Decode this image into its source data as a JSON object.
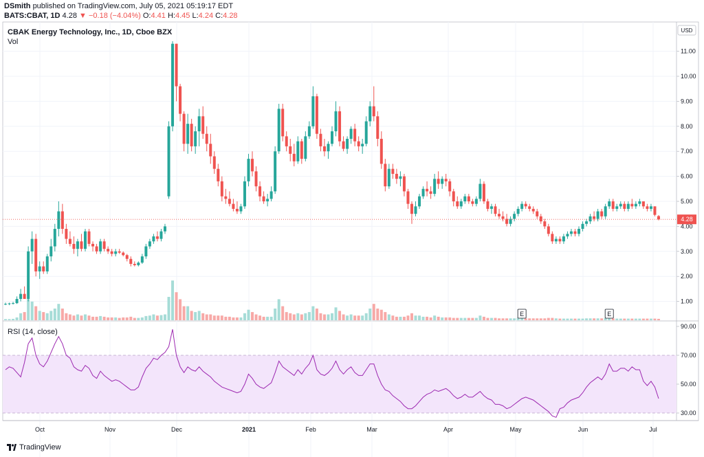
{
  "header": {
    "author": "DSmith",
    "published_text": "published on TradingView.com, July 05, 2021 05:19:17 EDT",
    "symbol": "BATS:CBAT, 1D",
    "last": "4.28",
    "change": "▼ −0.18 (−4.04%)",
    "o_label": "O:",
    "o_value": "4.41",
    "h_label": "H:",
    "h_value": "4.45",
    "l_label": "L:",
    "l_value": "4.24",
    "c_label": "C:",
    "c_value": "4.28"
  },
  "colors": {
    "up": "#26a69a",
    "down": "#ef5350",
    "rsi": "#9c27b0",
    "rsi_band": "#f3e5fb",
    "grid": "#f0f3fa"
  },
  "footer": {
    "brand": "TradingView",
    "logo_icon": "tradingview-logo-icon"
  },
  "chart_data": [
    {
      "type": "candlestick",
      "title": "CBAK Energy Technology, Inc., 1D, Cboe BZX",
      "volume_label": "Vol",
      "currency": "USD",
      "last_price_label": "4.28",
      "ylim": [
        0,
        11.8
      ],
      "y_ticks": [
        "1.00",
        "2.00",
        "3.00",
        "4.00",
        "5.00",
        "6.00",
        "7.00",
        "8.00",
        "9.00",
        "10.00",
        "11.00"
      ],
      "x_ticks": [
        "Oct",
        "Nov",
        "Dec",
        "2021",
        "Feb",
        "Mar",
        "Apr",
        "May",
        "Jun",
        "Jul"
      ],
      "earnings_markers": [
        "E",
        "E"
      ],
      "ohlc": [
        [
          0.9,
          0.95,
          0.85,
          0.9
        ],
        [
          0.9,
          0.95,
          0.85,
          0.92
        ],
        [
          0.92,
          0.98,
          0.88,
          0.93
        ],
        [
          0.93,
          1.2,
          0.9,
          1.1
        ],
        [
          1.1,
          1.5,
          1.0,
          1.3
        ],
        [
          1.3,
          1.6,
          1.2,
          1.1
        ],
        [
          1.1,
          3.2,
          1.0,
          3.0
        ],
        [
          3.0,
          3.8,
          2.5,
          3.5
        ],
        [
          3.5,
          3.7,
          2.0,
          2.2
        ],
        [
          2.2,
          2.6,
          1.9,
          2.4
        ],
        [
          2.4,
          2.6,
          2.1,
          2.2
        ],
        [
          2.2,
          2.9,
          2.1,
          2.8
        ],
        [
          2.8,
          3.5,
          2.6,
          3.2
        ],
        [
          3.2,
          4.1,
          3.0,
          3.9
        ],
        [
          3.9,
          5.0,
          3.6,
          4.6
        ],
        [
          4.6,
          4.9,
          3.7,
          3.9
        ],
        [
          3.9,
          4.1,
          3.3,
          3.5
        ],
        [
          3.5,
          3.8,
          3.2,
          3.3
        ],
        [
          3.3,
          3.6,
          2.9,
          3.1
        ],
        [
          3.1,
          3.5,
          2.8,
          3.4
        ],
        [
          3.4,
          3.7,
          3.0,
          3.1
        ],
        [
          3.1,
          3.9,
          3.0,
          3.8
        ],
        [
          3.8,
          3.9,
          3.2,
          3.3
        ],
        [
          3.3,
          3.4,
          3.0,
          3.2
        ],
        [
          3.2,
          3.3,
          2.9,
          3.0
        ],
        [
          3.0,
          3.5,
          2.9,
          3.4
        ],
        [
          3.4,
          3.5,
          3.0,
          3.1
        ],
        [
          3.1,
          3.2,
          2.9,
          3.0
        ],
        [
          3.0,
          3.1,
          2.8,
          2.9
        ],
        [
          2.9,
          3.1,
          2.8,
          3.0
        ],
        [
          3.0,
          3.1,
          2.9,
          2.95
        ],
        [
          2.95,
          3.0,
          2.8,
          2.85
        ],
        [
          2.85,
          2.9,
          2.6,
          2.7
        ],
        [
          2.7,
          2.8,
          2.4,
          2.5
        ],
        [
          2.5,
          2.6,
          2.4,
          2.45
        ],
        [
          2.45,
          2.6,
          2.4,
          2.55
        ],
        [
          2.55,
          2.9,
          2.5,
          2.8
        ],
        [
          2.8,
          3.3,
          2.7,
          3.2
        ],
        [
          3.2,
          3.5,
          3.1,
          3.4
        ],
        [
          3.4,
          3.7,
          3.3,
          3.6
        ],
        [
          3.6,
          3.8,
          3.4,
          3.5
        ],
        [
          3.5,
          3.9,
          3.4,
          3.8
        ],
        [
          3.8,
          4.1,
          3.7,
          4.0
        ],
        [
          5.2,
          8.2,
          5.1,
          8.0
        ],
        [
          8.0,
          11.4,
          7.8,
          11.3
        ],
        [
          11.3,
          11.3,
          9.0,
          9.6
        ],
        [
          9.6,
          9.7,
          8.2,
          8.5
        ],
        [
          8.5,
          8.6,
          7.0,
          7.3
        ],
        [
          7.3,
          8.5,
          6.9,
          8.1
        ],
        [
          8.1,
          8.3,
          7.0,
          7.2
        ],
        [
          7.2,
          8.0,
          6.9,
          7.8
        ],
        [
          7.8,
          8.7,
          7.2,
          8.4
        ],
        [
          8.4,
          8.8,
          7.5,
          7.7
        ],
        [
          7.7,
          8.0,
          7.0,
          7.3
        ],
        [
          7.3,
          7.7,
          6.5,
          6.8
        ],
        [
          6.8,
          7.0,
          6.1,
          6.3
        ],
        [
          6.3,
          6.5,
          5.6,
          5.8
        ],
        [
          5.8,
          6.0,
          5.0,
          5.2
        ],
        [
          5.2,
          5.5,
          4.9,
          5.1
        ],
        [
          5.1,
          5.4,
          4.8,
          4.9
        ],
        [
          4.9,
          5.1,
          4.6,
          4.7
        ],
        [
          4.7,
          5.0,
          4.5,
          4.6
        ],
        [
          4.6,
          4.9,
          4.5,
          4.8
        ],
        [
          4.8,
          6.0,
          4.7,
          5.8
        ],
        [
          5.8,
          6.9,
          5.6,
          6.7
        ],
        [
          6.7,
          7.0,
          6.0,
          6.2
        ],
        [
          6.2,
          6.4,
          5.4,
          5.6
        ],
        [
          5.6,
          5.8,
          5.0,
          5.2
        ],
        [
          5.2,
          5.4,
          4.9,
          5.0
        ],
        [
          5.0,
          5.3,
          4.8,
          5.1
        ],
        [
          5.1,
          5.6,
          5.0,
          5.4
        ],
        [
          5.4,
          7.2,
          5.3,
          7.0
        ],
        [
          7.0,
          8.9,
          6.9,
          8.7
        ],
        [
          8.7,
          8.9,
          7.4,
          7.6
        ],
        [
          7.6,
          7.8,
          7.0,
          7.2
        ],
        [
          7.2,
          7.5,
          6.6,
          6.9
        ],
        [
          6.9,
          7.3,
          6.4,
          6.6
        ],
        [
          6.6,
          7.6,
          6.5,
          7.4
        ],
        [
          7.4,
          7.5,
          6.5,
          6.7
        ],
        [
          6.7,
          7.8,
          6.6,
          7.6
        ],
        [
          7.6,
          8.2,
          7.5,
          8.0
        ],
        [
          8.0,
          9.6,
          7.9,
          9.2
        ],
        [
          9.2,
          9.3,
          7.5,
          7.7
        ],
        [
          7.7,
          7.9,
          7.0,
          7.2
        ],
        [
          7.2,
          7.5,
          6.8,
          7.0
        ],
        [
          7.0,
          7.4,
          6.7,
          7.3
        ],
        [
          7.3,
          8.0,
          7.2,
          7.8
        ],
        [
          7.8,
          9.0,
          7.6,
          8.6
        ],
        [
          8.6,
          8.8,
          7.2,
          7.4
        ],
        [
          7.4,
          7.6,
          7.0,
          7.1
        ],
        [
          7.1,
          7.6,
          6.9,
          7.5
        ],
        [
          7.5,
          8.0,
          7.3,
          7.9
        ],
        [
          7.9,
          8.1,
          7.2,
          7.4
        ],
        [
          7.4,
          7.6,
          7.0,
          7.2
        ],
        [
          7.2,
          7.5,
          6.9,
          7.3
        ],
        [
          7.3,
          8.4,
          7.2,
          8.2
        ],
        [
          8.2,
          9.0,
          8.0,
          8.8
        ],
        [
          8.8,
          9.6,
          8.2,
          8.4
        ],
        [
          8.4,
          8.6,
          7.2,
          7.5
        ],
        [
          7.5,
          7.8,
          6.3,
          6.5
        ],
        [
          6.5,
          6.7,
          5.4,
          5.6
        ],
        [
          5.6,
          6.5,
          5.5,
          6.3
        ],
        [
          6.3,
          6.5,
          5.9,
          6.1
        ],
        [
          6.1,
          6.3,
          5.7,
          5.9
        ],
        [
          5.9,
          6.2,
          5.6,
          6.0
        ],
        [
          6.0,
          6.1,
          5.2,
          5.4
        ],
        [
          5.4,
          5.5,
          4.7,
          4.9
        ],
        [
          4.9,
          5.0,
          4.1,
          4.5
        ],
        [
          4.5,
          5.0,
          4.4,
          4.8
        ],
        [
          4.8,
          5.3,
          4.7,
          5.2
        ],
        [
          5.2,
          5.6,
          5.1,
          5.5
        ],
        [
          5.5,
          5.8,
          5.2,
          5.4
        ],
        [
          5.4,
          5.6,
          5.1,
          5.3
        ],
        [
          5.3,
          6.1,
          5.2,
          5.9
        ],
        [
          5.9,
          6.2,
          5.5,
          5.7
        ],
        [
          5.7,
          6.0,
          5.5,
          5.9
        ],
        [
          5.9,
          6.1,
          5.6,
          5.8
        ],
        [
          5.8,
          5.9,
          5.2,
          5.4
        ],
        [
          5.4,
          5.5,
          4.8,
          5.0
        ],
        [
          5.0,
          5.2,
          4.7,
          4.8
        ],
        [
          4.8,
          5.1,
          4.7,
          5.0
        ],
        [
          5.0,
          5.3,
          4.9,
          5.2
        ],
        [
          5.2,
          5.3,
          4.9,
          5.0
        ],
        [
          5.0,
          5.1,
          4.8,
          4.9
        ],
        [
          4.9,
          5.2,
          4.8,
          5.1
        ],
        [
          5.1,
          5.9,
          5.0,
          5.7
        ],
        [
          5.7,
          5.8,
          4.9,
          5.0
        ],
        [
          5.0,
          5.1,
          4.6,
          4.7
        ],
        [
          4.7,
          4.9,
          4.5,
          4.8
        ],
        [
          4.8,
          4.9,
          4.4,
          4.5
        ],
        [
          4.5,
          4.7,
          4.3,
          4.4
        ],
        [
          4.4,
          4.6,
          4.2,
          4.3
        ],
        [
          4.3,
          4.5,
          4.0,
          4.1
        ],
        [
          4.1,
          4.4,
          4.0,
          4.3
        ],
        [
          4.3,
          4.6,
          4.2,
          4.5
        ],
        [
          4.5,
          4.8,
          4.4,
          4.7
        ],
        [
          4.7,
          5.0,
          4.6,
          4.9
        ],
        [
          4.9,
          5.0,
          4.7,
          4.8
        ],
        [
          4.8,
          4.9,
          4.6,
          4.7
        ],
        [
          4.7,
          4.8,
          4.5,
          4.6
        ],
        [
          4.6,
          4.7,
          4.3,
          4.4
        ],
        [
          4.4,
          4.5,
          4.1,
          4.2
        ],
        [
          4.2,
          4.3,
          3.9,
          4.0
        ],
        [
          4.0,
          4.1,
          3.6,
          3.7
        ],
        [
          3.7,
          3.8,
          3.3,
          3.4
        ],
        [
          3.4,
          3.6,
          3.3,
          3.5
        ],
        [
          3.5,
          3.6,
          3.3,
          3.4
        ],
        [
          3.4,
          3.7,
          3.3,
          3.6
        ],
        [
          3.6,
          3.8,
          3.5,
          3.7
        ],
        [
          3.7,
          3.9,
          3.6,
          3.8
        ],
        [
          3.8,
          3.9,
          3.6,
          3.7
        ],
        [
          3.7,
          4.0,
          3.6,
          3.9
        ],
        [
          3.9,
          4.2,
          3.8,
          4.1
        ],
        [
          4.1,
          4.3,
          4.0,
          4.2
        ],
        [
          4.2,
          4.5,
          4.1,
          4.4
        ],
        [
          4.4,
          4.6,
          4.2,
          4.3
        ],
        [
          4.3,
          4.7,
          4.2,
          4.6
        ],
        [
          4.6,
          4.7,
          4.3,
          4.4
        ],
        [
          4.4,
          4.9,
          4.3,
          4.8
        ],
        [
          4.8,
          5.1,
          4.7,
          5.0
        ],
        [
          5.0,
          5.1,
          4.6,
          4.7
        ],
        [
          4.7,
          4.9,
          4.6,
          4.8
        ],
        [
          4.8,
          5.0,
          4.7,
          4.9
        ],
        [
          4.9,
          5.0,
          4.6,
          4.7
        ],
        [
          4.7,
          5.0,
          4.6,
          4.9
        ],
        [
          4.9,
          5.1,
          4.7,
          4.8
        ],
        [
          4.8,
          5.0,
          4.7,
          4.9
        ],
        [
          4.9,
          5.1,
          4.8,
          5.0
        ],
        [
          5.0,
          5.0,
          4.7,
          4.8
        ],
        [
          4.8,
          4.9,
          4.6,
          4.7
        ],
        [
          4.7,
          4.9,
          4.6,
          4.8
        ],
        [
          4.8,
          4.8,
          4.4,
          4.46
        ],
        [
          4.41,
          4.45,
          4.24,
          4.28
        ]
      ],
      "volume": [
        0.05,
        0.05,
        0.06,
        0.12,
        0.3,
        0.35,
        0.9,
        0.8,
        0.6,
        0.4,
        0.35,
        0.3,
        0.4,
        0.5,
        0.7,
        0.5,
        0.3,
        0.25,
        0.2,
        0.25,
        0.2,
        0.25,
        0.2,
        0.15,
        0.15,
        0.18,
        0.15,
        0.12,
        0.12,
        0.12,
        0.1,
        0.12,
        0.12,
        0.15,
        0.1,
        0.1,
        0.12,
        0.18,
        0.2,
        0.25,
        0.2,
        0.22,
        0.25,
        1.0,
        1.7,
        1.2,
        0.9,
        0.6,
        0.6,
        0.4,
        0.35,
        0.4,
        0.3,
        0.25,
        0.25,
        0.2,
        0.2,
        0.2,
        0.15,
        0.15,
        0.12,
        0.12,
        0.12,
        0.3,
        0.45,
        0.35,
        0.25,
        0.2,
        0.15,
        0.15,
        0.15,
        0.5,
        0.9,
        0.6,
        0.35,
        0.3,
        0.25,
        0.3,
        0.25,
        0.3,
        0.35,
        0.6,
        0.5,
        0.3,
        0.25,
        0.25,
        0.3,
        0.55,
        0.4,
        0.25,
        0.2,
        0.25,
        0.2,
        0.2,
        0.2,
        0.3,
        0.5,
        0.7,
        0.5,
        0.45,
        0.35,
        0.25,
        0.2,
        0.15,
        0.15,
        0.15,
        0.2,
        0.3,
        0.2,
        0.2,
        0.15,
        0.15,
        0.12,
        0.2,
        0.15,
        0.12,
        0.12,
        0.12,
        0.1,
        0.1,
        0.1,
        0.1,
        0.1,
        0.1,
        0.1,
        0.2,
        0.15,
        0.1,
        0.1,
        0.1,
        0.08,
        0.08,
        0.08,
        0.08,
        0.08,
        0.1,
        0.1,
        0.08,
        0.08,
        0.08,
        0.08,
        0.08,
        0.08,
        0.1,
        0.1,
        0.08,
        0.07,
        0.07,
        0.07,
        0.07,
        0.07,
        0.07,
        0.07,
        0.08,
        0.08,
        0.08,
        0.08,
        0.08,
        0.09,
        0.1,
        0.08,
        0.07,
        0.07,
        0.07,
        0.07,
        0.07,
        0.07,
        0.07,
        0.07,
        0.07,
        0.07,
        0.07,
        0.06
      ]
    },
    {
      "type": "line",
      "title": "RSI (14, close)",
      "ylim": [
        23,
        93
      ],
      "y_ticks": [
        "30.00",
        "50.00",
        "70.00",
        "90.00"
      ],
      "band": [
        30,
        70
      ],
      "values": [
        60,
        62,
        61,
        58,
        55,
        65,
        78,
        82,
        70,
        64,
        62,
        66,
        72,
        78,
        83,
        78,
        70,
        68,
        62,
        60,
        59,
        63,
        61,
        56,
        54,
        59,
        56,
        54,
        52,
        53,
        52,
        50,
        48,
        46,
        46,
        48,
        55,
        61,
        64,
        68,
        67,
        70,
        72,
        76,
        88,
        70,
        62,
        58,
        62,
        60,
        59,
        62,
        59,
        57,
        55,
        52,
        50,
        48,
        47,
        46,
        45,
        44,
        45,
        50,
        57,
        54,
        50,
        48,
        47,
        49,
        51,
        58,
        66,
        62,
        60,
        58,
        56,
        60,
        57,
        61,
        64,
        70,
        60,
        57,
        56,
        58,
        61,
        66,
        60,
        57,
        60,
        62,
        58,
        56,
        56,
        60,
        64,
        64,
        56,
        50,
        46,
        45,
        42,
        40,
        38,
        35,
        33,
        33,
        35,
        38,
        41,
        43,
        44,
        46,
        45,
        46,
        47,
        45,
        42,
        40,
        41,
        43,
        41,
        41,
        43,
        45,
        42,
        40,
        39,
        36,
        36,
        35,
        33,
        34,
        36,
        38,
        40,
        41,
        40,
        39,
        37,
        35,
        33,
        31,
        28,
        27,
        33,
        34,
        37,
        39,
        40,
        41,
        44,
        48,
        51,
        53,
        55,
        53,
        57,
        64,
        59,
        59,
        61,
        61,
        59,
        62,
        60,
        60,
        52,
        49,
        52,
        48,
        40
      ]
    }
  ]
}
